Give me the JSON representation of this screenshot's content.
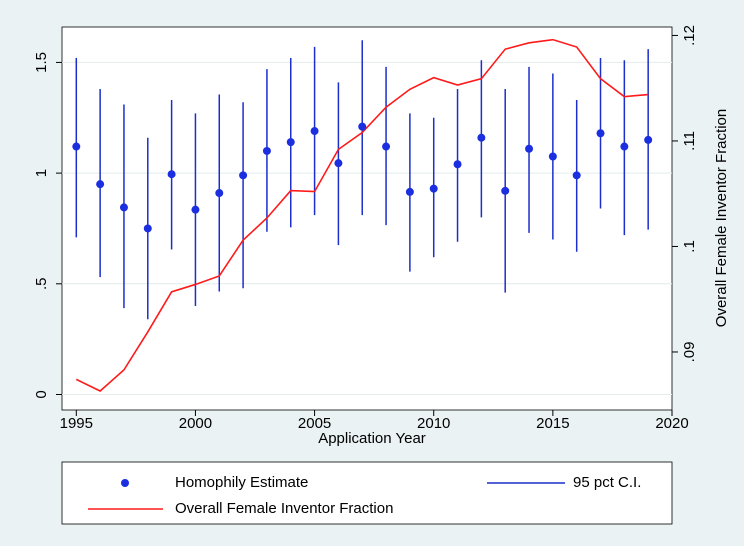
{
  "chart_data": {
    "type": "errorbar-line",
    "x_label": "Application Year",
    "y2_label": "Overall Female Inventor Fraction",
    "x": [
      1995,
      1996,
      1997,
      1998,
      1999,
      2000,
      2001,
      2002,
      2003,
      2004,
      2005,
      2006,
      2007,
      2008,
      2009,
      2010,
      2011,
      2012,
      2013,
      2014,
      2015,
      2016,
      2017,
      2018,
      2019
    ],
    "series": [
      {
        "name": "Homophily Estimate",
        "color": "#1c2fe0",
        "values": [
          1.12,
          0.95,
          0.845,
          0.75,
          0.995,
          0.835,
          0.91,
          0.99,
          1.1,
          1.14,
          1.19,
          1.045,
          1.21,
          1.12,
          0.915,
          0.93,
          1.04,
          1.16,
          0.92,
          1.11,
          1.075,
          0.99,
          1.18,
          1.12,
          1.15
        ]
      },
      {
        "name": "95 pct C.I.",
        "color": "#1c2fcc",
        "lower": [
          0.71,
          0.53,
          0.39,
          0.34,
          0.655,
          0.4,
          0.465,
          0.48,
          0.735,
          0.755,
          0.81,
          0.675,
          0.81,
          0.765,
          0.555,
          0.62,
          0.69,
          0.8,
          0.46,
          0.73,
          0.7,
          0.645,
          0.84,
          0.72,
          0.745
        ],
        "upper": [
          1.52,
          1.38,
          1.31,
          1.16,
          1.33,
          1.27,
          1.355,
          1.32,
          1.47,
          1.52,
          1.57,
          1.41,
          1.6,
          1.48,
          1.27,
          1.25,
          1.38,
          1.51,
          1.38,
          1.48,
          1.45,
          1.33,
          1.52,
          1.51,
          1.56
        ]
      },
      {
        "name": "Overall Female Inventor Fraction",
        "color": "#ff1a1a",
        "axis": "y2",
        "values": [
          0.0874,
          0.0863,
          0.0883,
          0.0919,
          0.0957,
          0.0964,
          0.0972,
          0.1006,
          0.1027,
          0.1053,
          0.1052,
          0.1092,
          0.1108,
          0.1132,
          0.1149,
          0.116,
          0.1153,
          0.1159,
          0.1187,
          0.1193,
          0.1196,
          0.1189,
          0.1159,
          0.1142,
          0.1144
        ]
      }
    ],
    "xlim": [
      1994.4,
      2020
    ],
    "xticks": [
      1995,
      2000,
      2005,
      2010,
      2015,
      2020
    ],
    "ylim": [
      -0.07,
      1.66
    ],
    "yticks": [
      0,
      {
        "value": 0.5,
        "label": ".5"
      },
      1,
      1.5
    ],
    "y2lim": [
      0.0845,
      0.1208
    ],
    "y2ticks": [
      {
        "value": 0.09,
        "label": ".09"
      },
      {
        "value": 0.1,
        "label": ".1"
      },
      {
        "value": 0.11,
        "label": ".11"
      },
      {
        "value": 0.12,
        "label": ".12"
      }
    ],
    "grid": true
  }
}
